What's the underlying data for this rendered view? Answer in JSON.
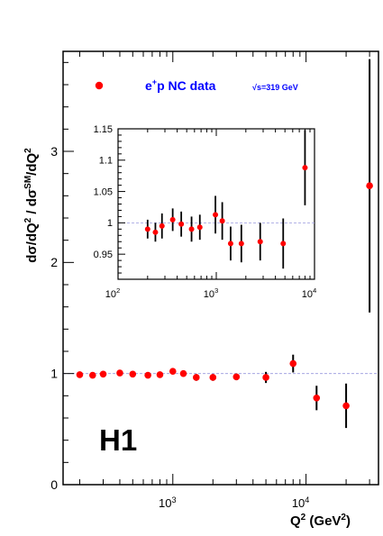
{
  "chart_data": [
    {
      "type": "scatter",
      "panel": "main",
      "x_scale": "log",
      "xlim": [
        150,
        35000
      ],
      "ylim": [
        0,
        3.9
      ],
      "x_tick_labels": [
        "10",
        "10"
      ],
      "x_tick_exponents": [
        "3",
        "4"
      ],
      "x_tick_values": [
        1000,
        10000
      ],
      "y_tick_values": [
        0,
        1,
        2,
        3
      ],
      "y_tick_labels": [
        "0",
        "1",
        "2",
        "3"
      ],
      "xlabel": {
        "main": "Q",
        "sup1": "2",
        "mid": " (GeV",
        "sup2": "2",
        "end": ")"
      },
      "ylabel": {
        "part1": "dσ/dQ",
        "sup1": "2",
        "part2": "  /  dσ",
        "sup2": "SM",
        "part3": "/dQ",
        "sup3": "2"
      },
      "reference_line": 1.0,
      "experiment_label": "H1",
      "legend": {
        "position": "top-left",
        "label_pre": "e",
        "label_sup": "+",
        "label_post": "p NC data",
        "energy": "√s=319 GeV",
        "marker_color": "#ff0000"
      },
      "points": [
        {
          "x": 200,
          "y": 0.99,
          "err": 0.0
        },
        {
          "x": 250,
          "y": 0.985,
          "err": 0.0
        },
        {
          "x": 300,
          "y": 0.995,
          "err": 0.0
        },
        {
          "x": 400,
          "y": 1.005,
          "err": 0.0
        },
        {
          "x": 500,
          "y": 0.995,
          "err": 0.0
        },
        {
          "x": 650,
          "y": 0.985,
          "err": 0.0
        },
        {
          "x": 800,
          "y": 0.99,
          "err": 0.0
        },
        {
          "x": 1000,
          "y": 1.02,
          "err": 0.02
        },
        {
          "x": 1200,
          "y": 1.0,
          "err": 0.0
        },
        {
          "x": 1500,
          "y": 0.965,
          "err": 0.03
        },
        {
          "x": 2000,
          "y": 0.965,
          "err": 0.03
        },
        {
          "x": 3000,
          "y": 0.97,
          "err": 0.03
        },
        {
          "x": 5000,
          "y": 0.965,
          "err": 0.05
        },
        {
          "x": 8000,
          "y": 1.09,
          "err": 0.08
        },
        {
          "x": 12000,
          "y": 0.78,
          "err": 0.11
        },
        {
          "x": 20000,
          "y": 0.71,
          "err": 0.2
        },
        {
          "x": 30000,
          "y": 2.69,
          "err": 1.14
        }
      ]
    },
    {
      "type": "scatter",
      "panel": "inset",
      "x_scale": "log",
      "xlim": [
        100,
        10000
      ],
      "ylim": [
        0.91,
        1.15
      ],
      "x_tick_values": [
        100,
        1000,
        10000
      ],
      "x_tick_labels": [
        "10",
        "10",
        "10"
      ],
      "x_tick_exponents": [
        "2",
        "3",
        "4"
      ],
      "y_tick_values": [
        0.95,
        1.0,
        1.05,
        1.1,
        1.15
      ],
      "y_tick_labels": [
        "0.95",
        "1",
        "1.05",
        "1.1",
        "1.15"
      ],
      "reference_line": 1.0,
      "points": [
        {
          "x": 200,
          "y": 0.99,
          "err": 0.015
        },
        {
          "x": 240,
          "y": 0.985,
          "err": 0.015
        },
        {
          "x": 280,
          "y": 0.995,
          "err": 0.02
        },
        {
          "x": 360,
          "y": 1.005,
          "err": 0.018
        },
        {
          "x": 440,
          "y": 0.998,
          "err": 0.02
        },
        {
          "x": 560,
          "y": 0.99,
          "err": 0.02
        },
        {
          "x": 680,
          "y": 0.993,
          "err": 0.02
        },
        {
          "x": 980,
          "y": 1.013,
          "err": 0.03
        },
        {
          "x": 1150,
          "y": 1.003,
          "err": 0.03
        },
        {
          "x": 1400,
          "y": 0.967,
          "err": 0.027
        },
        {
          "x": 1800,
          "y": 0.967,
          "err": 0.03
        },
        {
          "x": 2800,
          "y": 0.97,
          "err": 0.03
        },
        {
          "x": 4800,
          "y": 0.967,
          "err": 0.04
        },
        {
          "x": 8000,
          "y": 1.088,
          "err": 0.06
        }
      ]
    }
  ]
}
